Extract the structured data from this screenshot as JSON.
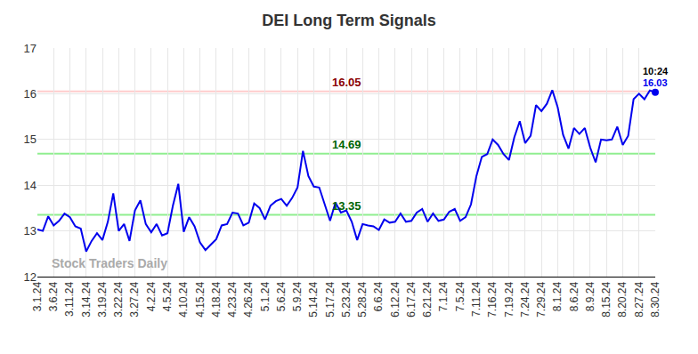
{
  "chart_data": {
    "type": "line",
    "title": "DEI Long Term Signals",
    "watermark": "Stock Traders Daily",
    "color": "#0000ee",
    "grid": true,
    "categories": [
      "3.1.24",
      null,
      null,
      "3.6.24",
      null,
      null,
      "3.11.24",
      null,
      null,
      "3.14.24",
      null,
      null,
      "3.19.24",
      null,
      null,
      "3.22.24",
      null,
      null,
      "3.27.24",
      null,
      null,
      "4.2.24",
      null,
      null,
      "4.5.24",
      null,
      null,
      "4.10.24",
      null,
      null,
      "4.15.24",
      null,
      null,
      "4.18.24",
      null,
      null,
      "4.23.24",
      null,
      null,
      "4.26.24",
      null,
      null,
      "5.1.24",
      null,
      null,
      "5.6.24",
      null,
      null,
      "5.9.24",
      null,
      null,
      "5.14.24",
      null,
      null,
      "5.17.24",
      null,
      null,
      "5.23.24",
      null,
      null,
      "5.28.24",
      null,
      null,
      "6.6.24",
      null,
      null,
      "6.12.24",
      null,
      null,
      "6.17.24",
      null,
      null,
      "6.21.24",
      null,
      null,
      "7.1.24",
      null,
      null,
      "7.5.24",
      null,
      null,
      "7.11.24",
      null,
      null,
      "7.16.24",
      null,
      null,
      "7.19.24",
      null,
      null,
      "7.24.24",
      null,
      null,
      "7.29.24",
      null,
      null,
      "8.1.24",
      null,
      null,
      "8.6.24",
      null,
      null,
      "8.9.24",
      null,
      null,
      "8.15.24",
      null,
      null,
      "8.20.24",
      null,
      null,
      "8.27.24",
      null,
      null,
      "8.30.24"
    ],
    "values": [
      13.03,
      13.0,
      13.32,
      13.12,
      13.22,
      13.38,
      13.3,
      13.1,
      13.05,
      12.55,
      12.78,
      12.95,
      12.8,
      13.2,
      13.82,
      13.0,
      13.15,
      12.78,
      13.45,
      13.67,
      13.15,
      12.97,
      13.15,
      12.9,
      12.95,
      13.55,
      14.03,
      12.98,
      13.3,
      13.1,
      12.75,
      12.58,
      12.7,
      12.82,
      13.12,
      13.15,
      13.4,
      13.38,
      13.12,
      13.18,
      13.6,
      13.5,
      13.25,
      13.55,
      13.65,
      13.7,
      13.55,
      13.72,
      13.95,
      14.75,
      14.2,
      13.97,
      13.95,
      13.6,
      13.22,
      13.62,
      13.4,
      13.45,
      13.2,
      12.8,
      13.15,
      13.12,
      13.1,
      13.02,
      13.25,
      13.18,
      13.2,
      13.38,
      13.2,
      13.22,
      13.4,
      13.48,
      13.2,
      13.38,
      13.22,
      13.25,
      13.42,
      13.48,
      13.22,
      13.3,
      13.58,
      14.2,
      14.62,
      14.68,
      15.0,
      14.88,
      14.68,
      14.55,
      15.05,
      15.4,
      14.92,
      15.08,
      15.75,
      15.62,
      15.78,
      16.08,
      15.7,
      15.1,
      14.8,
      15.25,
      15.12,
      15.25,
      14.82,
      14.5,
      15.0,
      14.98,
      15.0,
      15.28,
      14.88,
      15.08,
      15.88,
      16.0,
      15.88,
      16.07,
      16.03
    ],
    "ylim": [
      12,
      17
    ],
    "yticks": [
      12,
      13,
      14,
      15,
      16,
      17
    ],
    "reference_lines": [
      {
        "value": 16.05,
        "label": "16.05",
        "color": "#ffcccc",
        "label_color": "#8b0000"
      },
      {
        "value": 14.69,
        "label": "14.69",
        "color": "#90ee90",
        "label_color": "#006400"
      },
      {
        "value": 13.35,
        "label": "13.35",
        "color": "#90ee90",
        "label_color": "#006400"
      }
    ],
    "last_point": {
      "time": "10:24",
      "value_label": "16.03",
      "time_color": "#000000",
      "value_color": "#0000ee"
    }
  }
}
